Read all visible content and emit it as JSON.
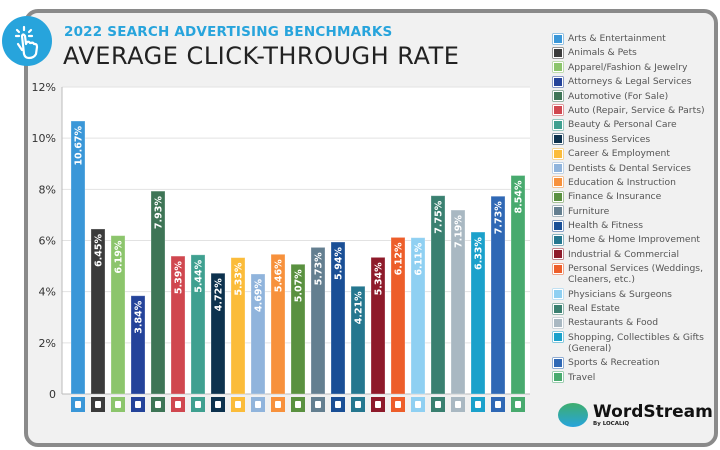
{
  "header": {
    "subtitle": "2022 SEARCH ADVERTISING BENCHMARKS",
    "title": "AVERAGE CLICK-THROUGH RATE",
    "icon": "pointing-hand-click-icon"
  },
  "logo": {
    "name": "WordStream",
    "by": "By LOCALiQ"
  },
  "chart_data": {
    "type": "bar",
    "title": "AVERAGE CLICK-THROUGH RATE",
    "ylim": [
      0,
      12
    ],
    "yticks": [
      "0",
      "2%",
      "4%",
      "6%",
      "8%",
      "10%",
      "12%"
    ],
    "grid": true,
    "legend_placement": "right",
    "categories": [
      "Arts & Entertainment",
      "Animals & Pets",
      "Apparel/Fashion & Jewelry",
      "Attorneys & Legal Services",
      "Automotive (For Sale)",
      "Auto (Repair, Service & Parts)",
      "Beauty & Personal Care",
      "Business Services",
      "Career & Employment",
      "Dentists & Dental Services",
      "Education & Instruction",
      "Finance & Insurance",
      "Furniture",
      "Health & Fitness",
      "Home & Home Improvement",
      "Industrial & Commercial",
      "Personal Services (Weddings, Cleaners, etc.)",
      "Physicians & Surgeons",
      "Real Estate",
      "Restaurants & Food",
      "Shopping, Collectibles & Gifts (General)",
      "Sports & Recreation",
      "Travel"
    ],
    "values": [
      10.67,
      6.45,
      6.19,
      3.84,
      7.93,
      5.39,
      5.44,
      4.72,
      5.33,
      4.69,
      5.46,
      5.07,
      5.73,
      5.94,
      4.21,
      5.34,
      6.12,
      6.11,
      7.75,
      7.19,
      6.33,
      7.73,
      8.54
    ],
    "labels": [
      "10.67%",
      "6.45%",
      "6.19%",
      "3.84%",
      "7.93%",
      "5.39%",
      "5.44%",
      "4.72%",
      "5.33%",
      "4.69%",
      "5.46%",
      "5.07%",
      "5.73%",
      "5.94%",
      "4.21%",
      "5.34%",
      "6.12%",
      "6.11%",
      "7.75%",
      "7.19%",
      "6.33%",
      "7.73%",
      "8.54%"
    ],
    "colors": [
      "#3a97d8",
      "#3b3b3b",
      "#8cc56c",
      "#24439a",
      "#3e7556",
      "#d0474f",
      "#3fa090",
      "#0d324e",
      "#fbbc3a",
      "#90b4dc",
      "#f7913c",
      "#5a9140",
      "#647f90",
      "#1a4f96",
      "#25778f",
      "#8e1a2a",
      "#ed5e2a",
      "#8fd0f2",
      "#3a8070",
      "#a9b8c2",
      "#1ba1cb",
      "#2f68b5",
      "#48aa6e"
    ],
    "icons": [
      "picture-icon",
      "paw-icon",
      "shirt-icon",
      "gavel-icon",
      "car-tag-icon",
      "car-icon",
      "brush-icon",
      "document-icon",
      "briefcase-icon",
      "tooth-icon",
      "graduation-cap-icon",
      "piggy-bank-icon",
      "armchair-icon",
      "dumbbell-icon",
      "house-icon",
      "factory-icon",
      "hand-icon",
      "medical-cross-icon",
      "building-icon",
      "fork-knife-icon",
      "gift-icon",
      "ball-icon",
      "airplane-icon"
    ]
  }
}
